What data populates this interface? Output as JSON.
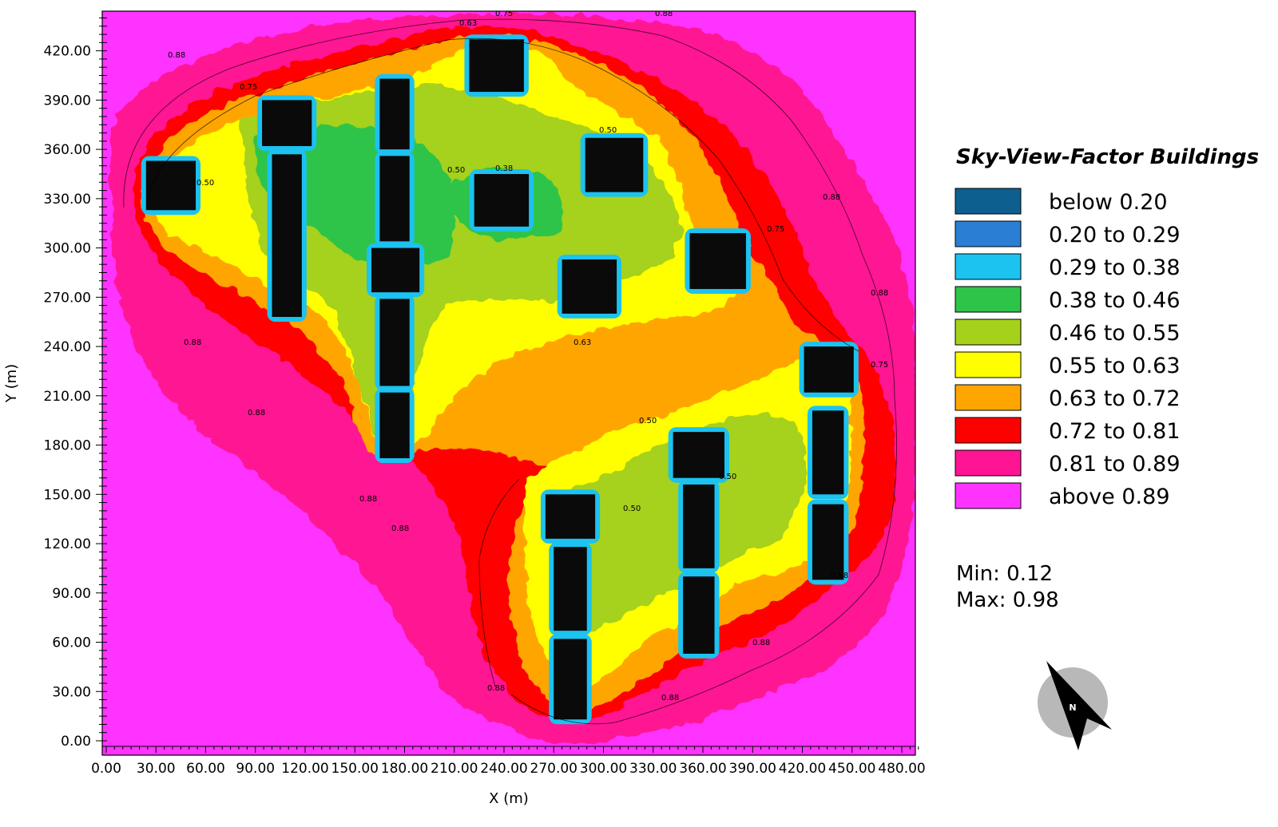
{
  "legend": {
    "title": "Sky-View-Factor Buildings",
    "items": [
      {
        "label": "below 0.20",
        "color": "#0d5f8f"
      },
      {
        "label": "0.20 to 0.29",
        "color": "#2a7fd4"
      },
      {
        "label": "0.29 to 0.38",
        "color": "#1cc2f0"
      },
      {
        "label": "0.38 to 0.46",
        "color": "#2ec44a"
      },
      {
        "label": "0.46 to 0.55",
        "color": "#a6d11a"
      },
      {
        "label": "0.55 to 0.63",
        "color": "#ffff00"
      },
      {
        "label": "0.63 to 0.72",
        "color": "#ffa500"
      },
      {
        "label": "0.72 to 0.81",
        "color": "#ff0000"
      },
      {
        "label": "0.81 to 0.89",
        "color": "#ff1493"
      },
      {
        "label": "above 0.89",
        "color": "#ff33ff"
      }
    ]
  },
  "stats": {
    "min": "Min: 0.12",
    "max": "Max: 0.98"
  },
  "compass": {
    "label": "N"
  },
  "axes": {
    "xlabel": "X (m)",
    "ylabel": "Y (m)",
    "xticks": [
      "0.00",
      "30.00",
      "60.00",
      "90.00",
      "120.00",
      "150.00",
      "180.00",
      "210.00",
      "240.00",
      "270.00",
      "300.00",
      "330.00",
      "360.00",
      "390.00",
      "420.00",
      "450.00",
      "480.00"
    ],
    "yticks": [
      "0.00",
      "30.00",
      "60.00",
      "90.00",
      "120.00",
      "150.00",
      "180.00",
      "210.00",
      "240.00",
      "270.00",
      "300.00",
      "330.00",
      "360.00",
      "390.00",
      "420.00"
    ]
  },
  "buildings": [
    {
      "x0": 24,
      "x1": 54,
      "y0": 323,
      "y1": 353
    },
    {
      "x0": 94,
      "x1": 124,
      "y0": 362,
      "y1": 390
    },
    {
      "x0": 100,
      "x1": 118,
      "y0": 258,
      "y1": 357
    },
    {
      "x0": 165,
      "x1": 183,
      "y0": 360,
      "y1": 403
    },
    {
      "x0": 165,
      "x1": 183,
      "y0": 304,
      "y1": 356
    },
    {
      "x0": 160,
      "x1": 189,
      "y0": 273,
      "y1": 300
    },
    {
      "x0": 165,
      "x1": 183,
      "y0": 216,
      "y1": 269
    },
    {
      "x0": 165,
      "x1": 183,
      "y0": 172,
      "y1": 212
    },
    {
      "x0": 219,
      "x1": 252,
      "y0": 395,
      "y1": 427
    },
    {
      "x0": 222,
      "x1": 255,
      "y0": 313,
      "y1": 345
    },
    {
      "x0": 289,
      "x1": 324,
      "y0": 334,
      "y1": 367
    },
    {
      "x0": 275,
      "x1": 308,
      "y0": 260,
      "y1": 293
    },
    {
      "x0": 352,
      "x1": 386,
      "y0": 275,
      "y1": 309
    },
    {
      "x0": 265,
      "x1": 295,
      "y0": 123,
      "y1": 150
    },
    {
      "x0": 270,
      "x1": 290,
      "y0": 67,
      "y1": 118
    },
    {
      "x0": 270,
      "x1": 290,
      "y0": 13,
      "y1": 62
    },
    {
      "x0": 342,
      "x1": 373,
      "y0": 160,
      "y1": 188
    },
    {
      "x0": 348,
      "x1": 367,
      "y0": 105,
      "y1": 156
    },
    {
      "x0": 348,
      "x1": 367,
      "y0": 53,
      "y1": 100
    },
    {
      "x0": 421,
      "x1": 451,
      "y0": 212,
      "y1": 240
    },
    {
      "x0": 426,
      "x1": 445,
      "y0": 150,
      "y1": 201
    },
    {
      "x0": 426,
      "x1": 445,
      "y0": 98,
      "y1": 144
    }
  ],
  "contour_labels": [
    "0.50",
    "0.63",
    "0.75",
    "0.88",
    "0.38"
  ]
}
